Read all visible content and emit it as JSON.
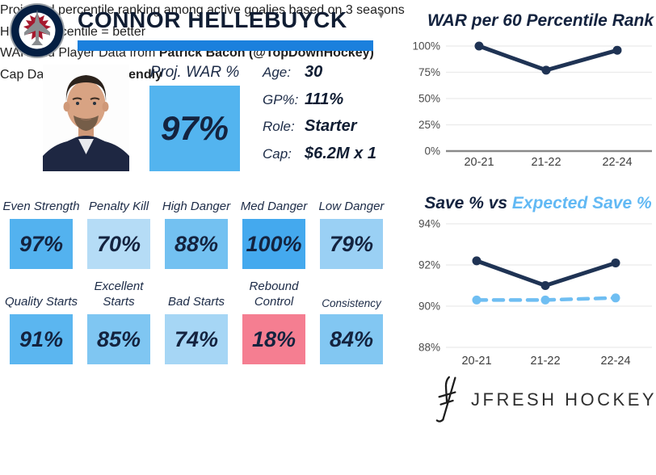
{
  "header": {
    "player_name": "CONNOR HELLEBUYCK",
    "team": "Winnipeg Jets",
    "team_logo_icon": "winnipeg-jets-logo",
    "dropdown_icon": "caret-down",
    "dropdown_glyph": "▾",
    "accent_bar_color": "#1b80dd"
  },
  "summary": {
    "proj_war_label": "Proj. WAR %",
    "proj_war_value": "97%",
    "proj_war_color": "#53b4ef",
    "info": [
      {
        "label": "Age:",
        "value": "30"
      },
      {
        "label": "GP%:",
        "value": "111%"
      },
      {
        "label": "Role:",
        "value": "Starter"
      },
      {
        "label": "Cap:",
        "value": "$6.2M x 1"
      }
    ]
  },
  "stats": {
    "row1": [
      {
        "label": "Even Strength",
        "value": "97%",
        "color": "#53b2ef"
      },
      {
        "label": "Penalty Kill",
        "value": "70%",
        "color": "#b5dcf6"
      },
      {
        "label": "High Danger",
        "value": "88%",
        "color": "#73c1f1"
      },
      {
        "label": "Med Danger",
        "value": "100%",
        "color": "#44a9ee"
      },
      {
        "label": "Low Danger",
        "value": "79%",
        "color": "#9ad0f4"
      }
    ],
    "row2": [
      {
        "label": "Quality Starts",
        "value": "91%",
        "color": "#5bb6f0"
      },
      {
        "label": "Excellent Starts",
        "value": "85%",
        "color": "#7fc6f2"
      },
      {
        "label": "Bad Starts",
        "value": "74%",
        "color": "#a6d6f5"
      },
      {
        "label": "Rebound Control",
        "value": "18%",
        "color": "#f57e91"
      },
      {
        "label": "Consistency",
        "value": "84%",
        "color": "#82c7f2"
      }
    ]
  },
  "footnotes": [
    {
      "text": "Projected percentile ranking among active goalies based on 3 seasons",
      "bold": ""
    },
    {
      "text": "Higher percentile = better",
      "bold": ""
    },
    {
      "text": "WAR and Player Data from ",
      "bold": "Patrick Bacon (@TopDownHockey)"
    },
    {
      "text": "Cap Data from ",
      "bold": "CapFriendly"
    }
  ],
  "branding": {
    "logo_icon": "jfresh-hockey-sticks-monogram",
    "name": "JFRESH HOCKEY"
  },
  "chart_data": [
    {
      "type": "line",
      "title": "WAR per 60 Percentile Rank",
      "title_color": "#14233f",
      "categories": [
        "20-21",
        "21-22",
        "22-24"
      ],
      "series": [
        {
          "name": "WAR per 60 percentile rank",
          "color": "#1f3354",
          "dashed": false,
          "values": [
            100,
            77,
            96
          ]
        }
      ],
      "ylim": [
        0,
        100
      ],
      "yticks": [
        0,
        25,
        50,
        75,
        100
      ],
      "tick_suffix": "%",
      "grid": true,
      "legend": "none"
    },
    {
      "type": "line",
      "title": "Save % vs Expected Save %",
      "title_parts": [
        {
          "text": "Save % ",
          "color": "#14233f"
        },
        {
          "text": "vs ",
          "color": "#14233f"
        },
        {
          "text": "Expected Save %",
          "color": "#62b9f4"
        }
      ],
      "categories": [
        "20-21",
        "21-22",
        "22-24"
      ],
      "series": [
        {
          "name": "Save %",
          "color": "#1f3354",
          "dashed": false,
          "values": [
            92.2,
            91.0,
            92.1
          ]
        },
        {
          "name": "Expected Save %",
          "color": "#6fbef2",
          "dashed": true,
          "values": [
            90.3,
            90.3,
            90.4
          ]
        }
      ],
      "ylim": [
        88,
        94
      ],
      "yticks": [
        88,
        90,
        92,
        94
      ],
      "tick_suffix": "%",
      "grid": true,
      "legend": "in-title"
    }
  ]
}
